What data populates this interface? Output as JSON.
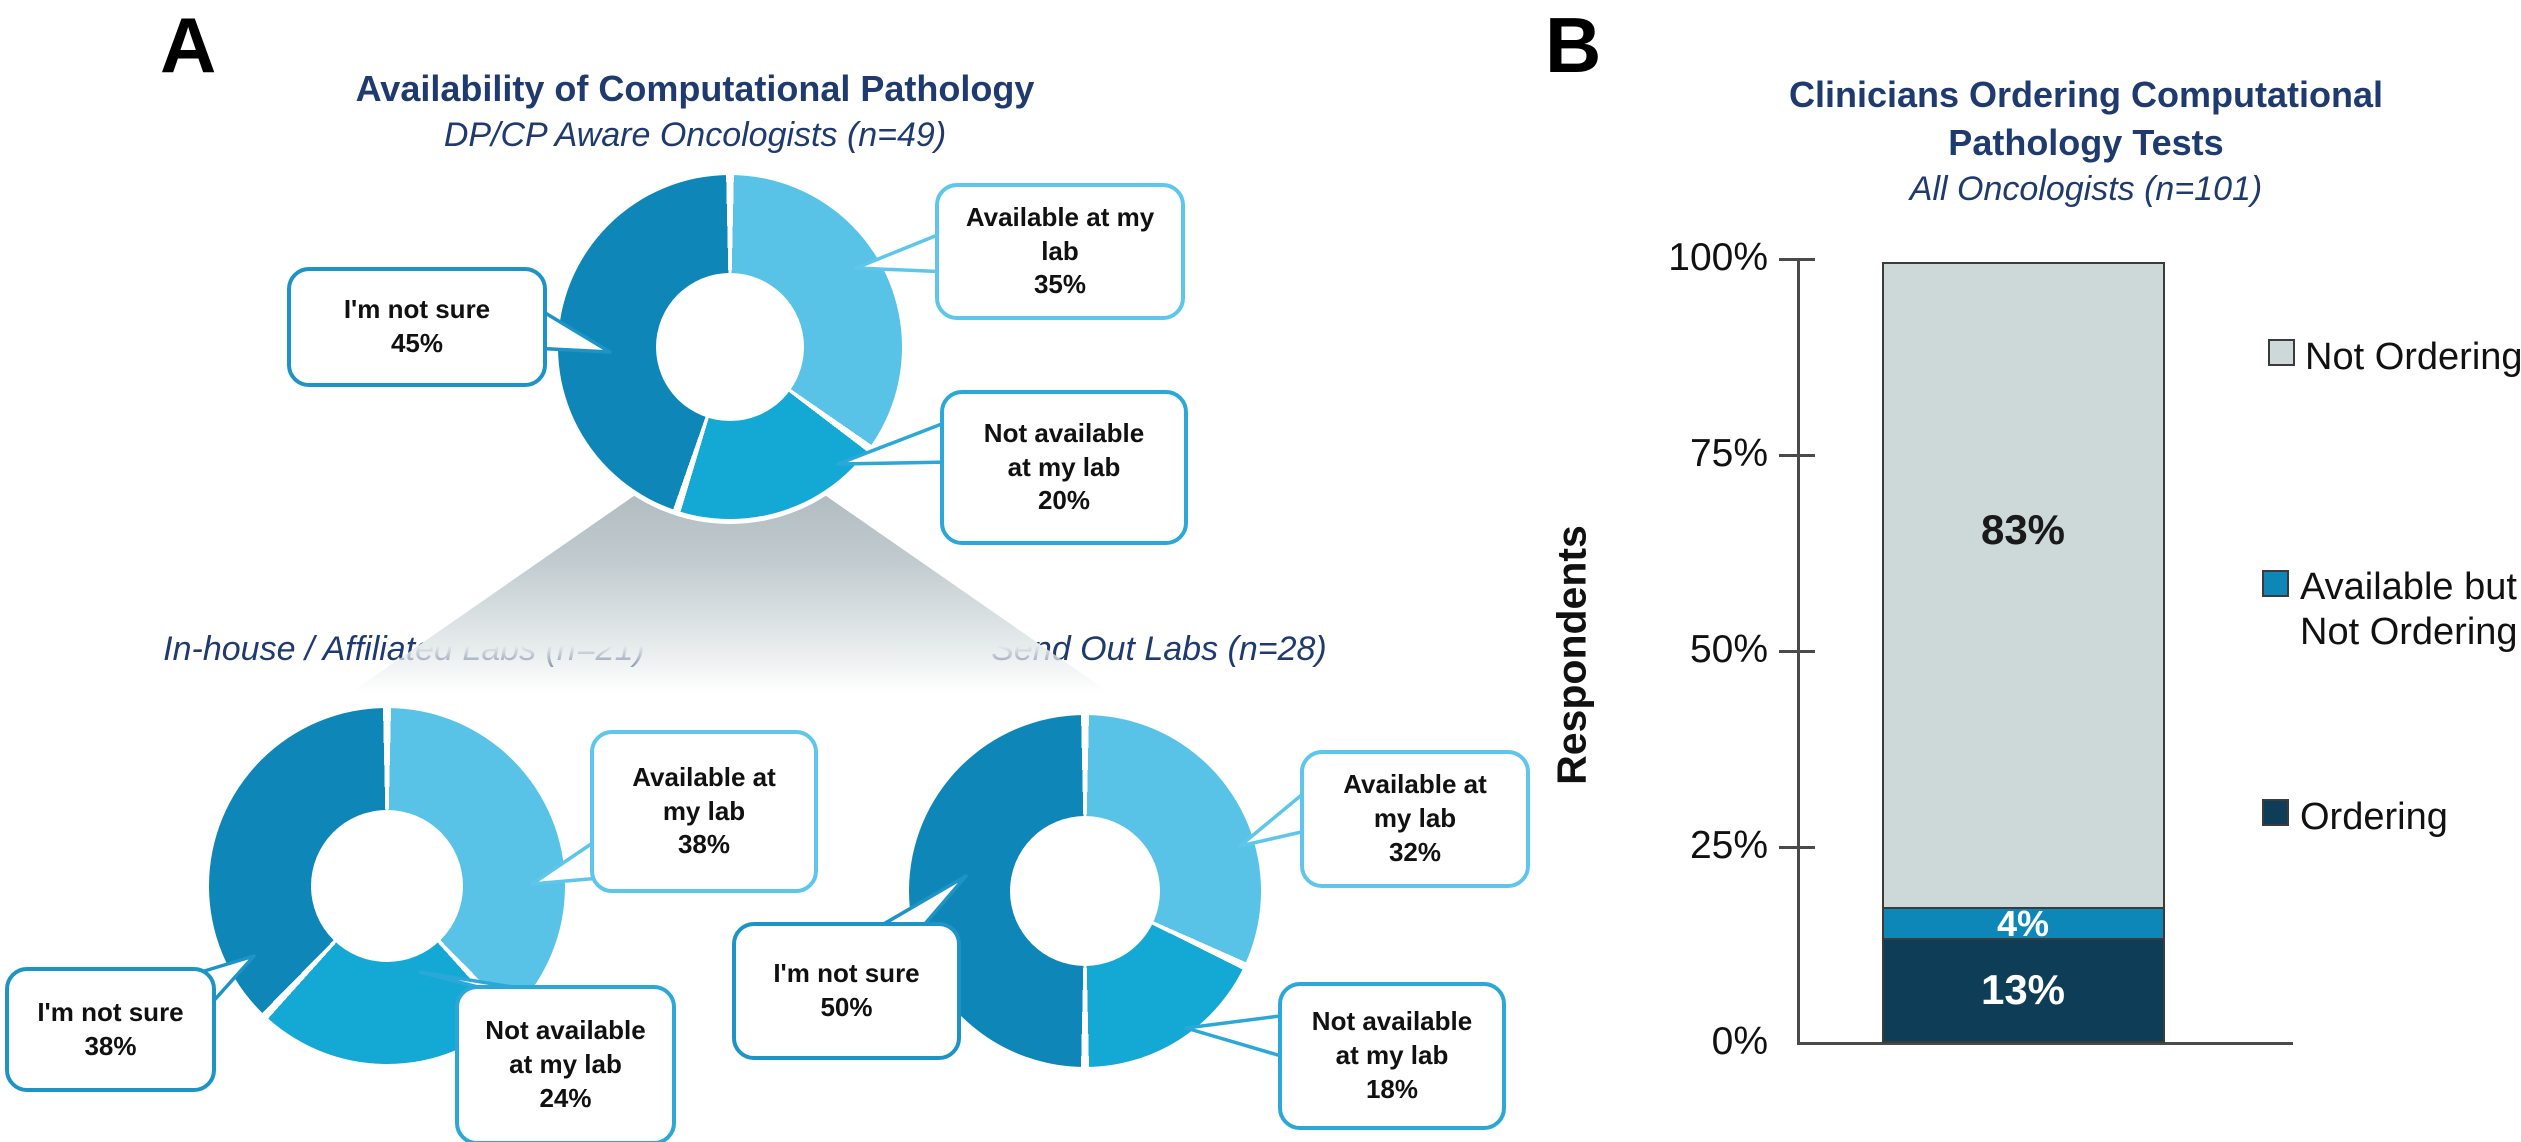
{
  "panel_labels": {
    "a": "A",
    "b": "B"
  },
  "chart_data": [
    {
      "type": "pie",
      "subtype": "donut",
      "panel": "A",
      "title": "Availability of Computational Pathology",
      "subtitle": "DP/CP Aware Oncologists (n=49)",
      "labels": [
        "Available at my lab",
        "Not available at my lab",
        "I'm not sure"
      ],
      "values": [
        35,
        20,
        45
      ],
      "colors": [
        "#58C3E6",
        "#14A8D4",
        "#0E86B8"
      ]
    },
    {
      "type": "pie",
      "subtype": "donut",
      "panel": "A",
      "title": "In-house / Affiliated Labs (n=21)",
      "labels": [
        "Available at my lab",
        "Not available at my lab",
        "I'm not sure"
      ],
      "values": [
        38,
        24,
        38
      ],
      "colors": [
        "#58C3E6",
        "#14A8D4",
        "#0E86B8"
      ]
    },
    {
      "type": "pie",
      "subtype": "donut",
      "panel": "A",
      "title": "Send Out Labs (n=28)",
      "labels": [
        "Available at my lab",
        "Not available at my lab",
        "I'm not sure"
      ],
      "values": [
        32,
        18,
        50
      ],
      "colors": [
        "#58C3E6",
        "#14A8D4",
        "#0E86B8"
      ]
    },
    {
      "type": "bar",
      "stacked": true,
      "panel": "B",
      "title": "Clinicians Ordering Computational Pathology Tests",
      "subtitle": "All Oncologists (n=101)",
      "ylabel": "Respondents",
      "ylim": [
        0,
        100
      ],
      "yticks": [
        "0%",
        "25%",
        "50%",
        "75%",
        "100%"
      ],
      "categories": [
        "All Oncologists"
      ],
      "series": [
        {
          "name": "Ordering",
          "value": 13,
          "color": "#0E3D57",
          "label_color": "#FFFFFF"
        },
        {
          "name": "Available but Not Ordering",
          "value": 4,
          "color": "#0C87B8",
          "label_color": "#FFFFFF"
        },
        {
          "name": "Not Ordering",
          "value": 83,
          "color": "#CDD8D8",
          "label_color": "#1A1A1A"
        }
      ],
      "legend_position": "right"
    }
  ],
  "ui": {
    "panel_a": {
      "title": "Availability of Computational Pathology",
      "donuts": [
        {
          "subtitle": "DP/CP Aware Oncologists (n=49)",
          "callouts": {
            "available": {
              "lines": [
                "Available at my",
                "lab",
                "35%"
              ]
            },
            "not_available": {
              "lines": [
                "Not available",
                "at my lab",
                "20%"
              ]
            },
            "not_sure": {
              "lines": [
                "I'm not sure",
                "45%"
              ]
            }
          }
        },
        {
          "subtitle": "In-house / Affiliated Labs (n=21)",
          "callouts": {
            "available": {
              "lines": [
                "Available at",
                "my lab",
                "38%"
              ]
            },
            "not_available": {
              "lines": [
                "Not available",
                "at my lab",
                "24%"
              ]
            },
            "not_sure": {
              "lines": [
                "I'm not sure",
                "38%"
              ]
            }
          }
        },
        {
          "subtitle": "Send Out Labs (n=28)",
          "callouts": {
            "available": {
              "lines": [
                "Available at",
                "my lab",
                "32%"
              ]
            },
            "not_available": {
              "lines": [
                "Not available",
                "at my lab",
                "18%"
              ]
            },
            "not_sure": {
              "lines": [
                "I'm not sure",
                "50%"
              ]
            }
          }
        }
      ]
    },
    "panel_b": {
      "title_line1": "Clinicians Ordering Computational",
      "title_line2": "Pathology Tests",
      "subtitle": "All Oncologists (n=101)",
      "ylabel": "Respondents",
      "yticks": [
        "100%",
        "75%",
        "50%",
        "25%",
        "0%"
      ],
      "bar_labels": [
        "83%",
        "4%",
        "13%"
      ],
      "legend": [
        {
          "lines": [
            "Not Ordering"
          ]
        },
        {
          "lines": [
            "Available but",
            "Not Ordering"
          ]
        },
        {
          "lines": [
            "Ordering"
          ]
        }
      ]
    }
  }
}
